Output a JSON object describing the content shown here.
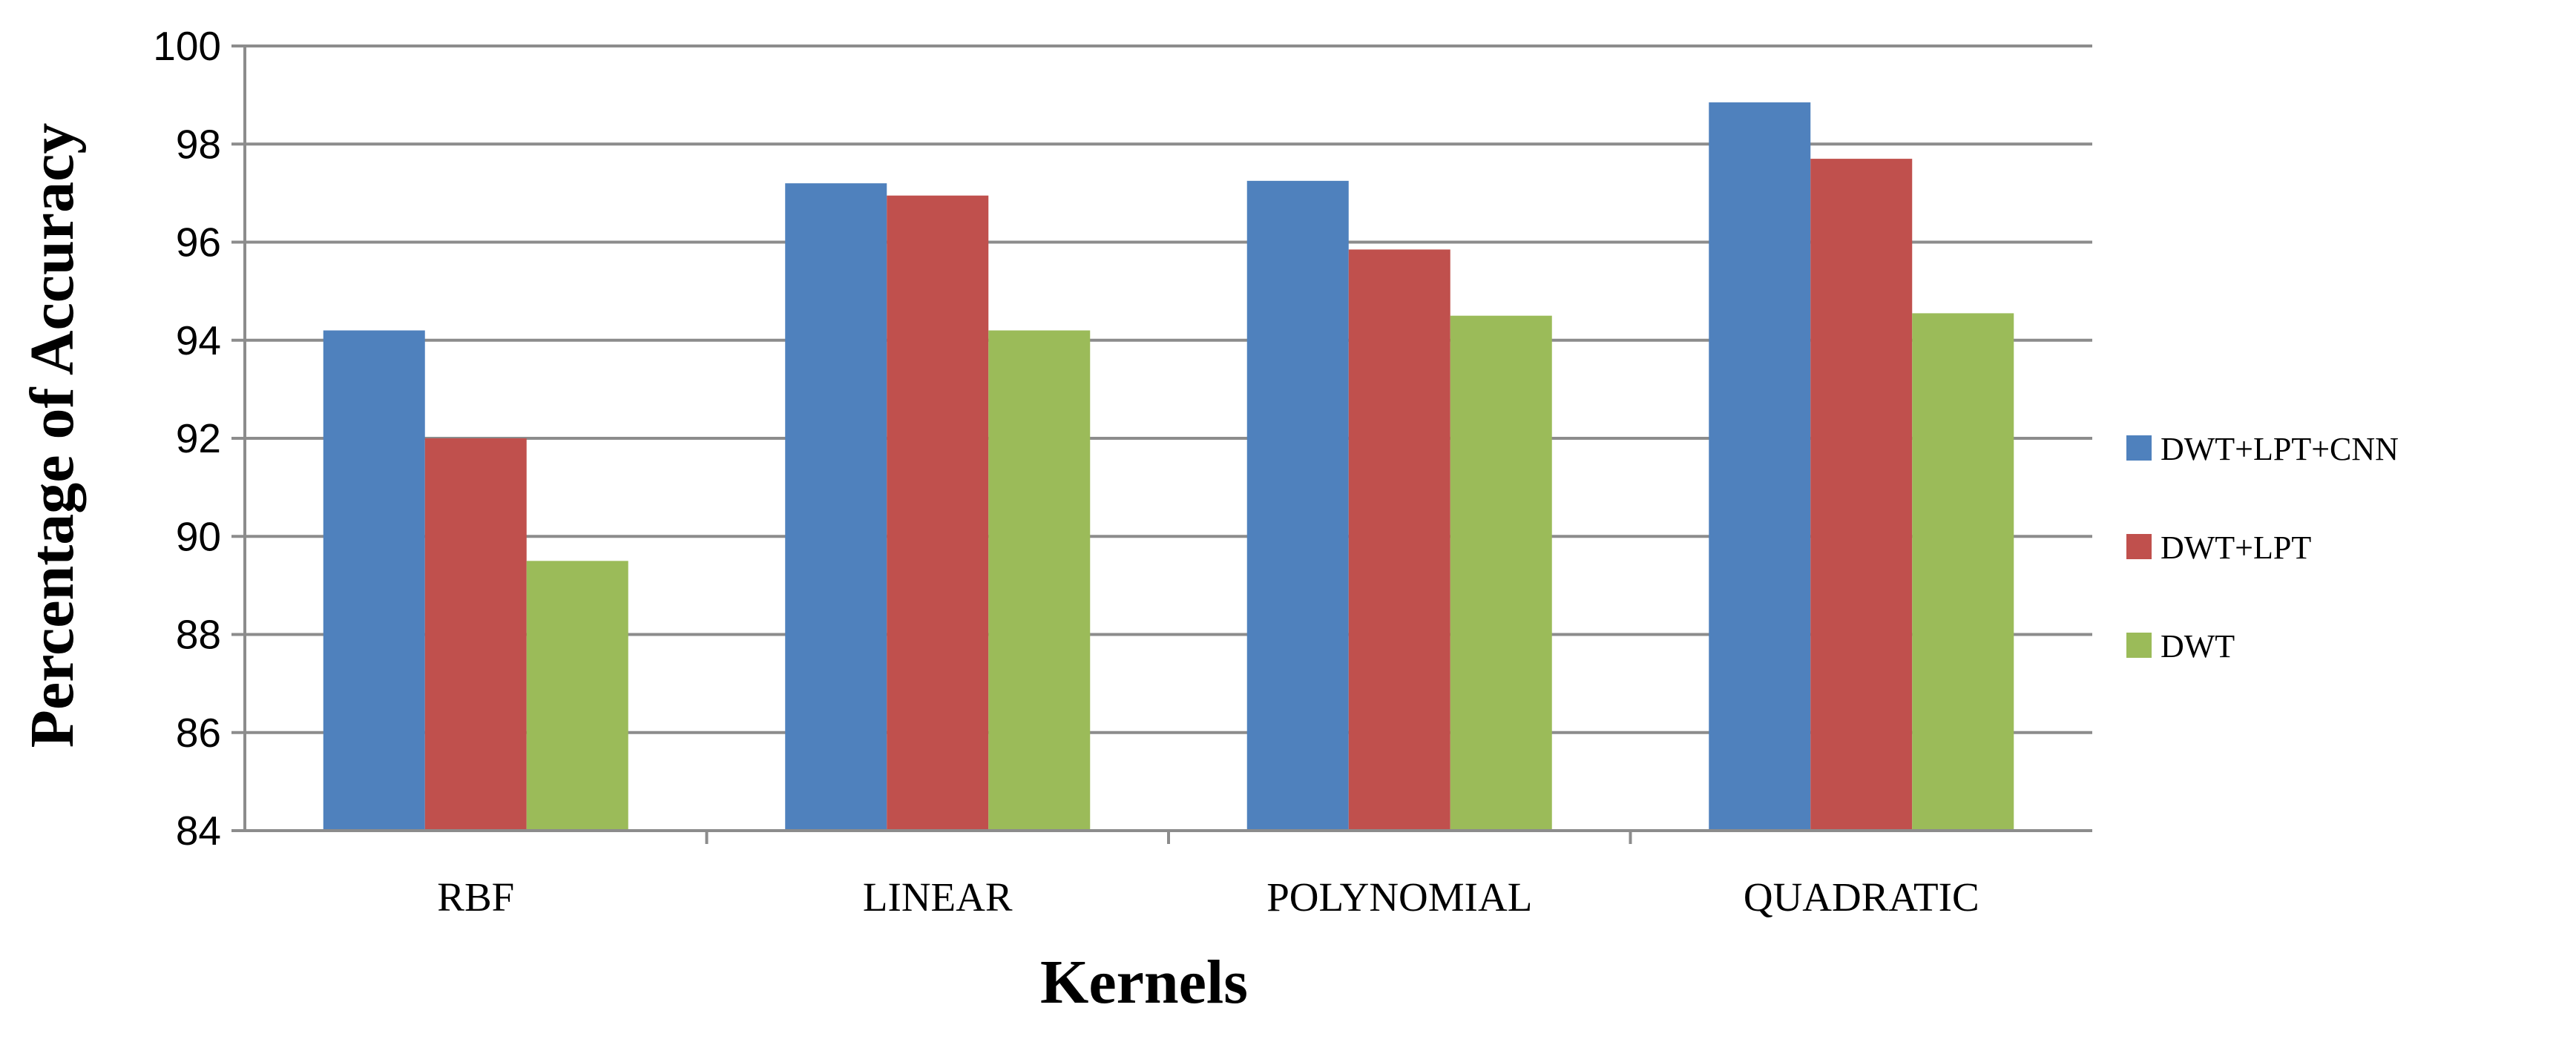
{
  "chart_data": {
    "type": "bar",
    "title": "",
    "xlabel": "Kernels",
    "ylabel": "Percentage of Accuracy",
    "categories": [
      "RBF",
      "LINEAR",
      "POLYNOMIAL",
      "QUADRATIC"
    ],
    "series": [
      {
        "name": "DWT+LPT+CNN",
        "values": [
          94.2,
          97.2,
          97.25,
          98.85
        ],
        "color": "#4f81bd"
      },
      {
        "name": "DWT+LPT",
        "values": [
          92.0,
          96.95,
          95.85,
          97.7
        ],
        "color": "#c0504d"
      },
      {
        "name": "DWT",
        "values": [
          89.5,
          94.2,
          94.5,
          94.55
        ],
        "color": "#9bbb59"
      }
    ],
    "ylim": [
      84,
      100
    ],
    "yticks": [
      84,
      86,
      88,
      90,
      92,
      94,
      96,
      98,
      100
    ],
    "grid": true,
    "legend_position": "right"
  }
}
